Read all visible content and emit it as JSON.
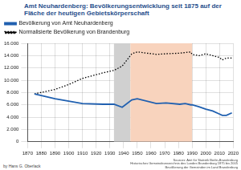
{
  "chart_data": {
    "type": "line",
    "title": "Amt Neuhardenberg: Bevölkerungsentwicklung seit 1875 auf der Fläche der heutigen Gebietskörperschaft",
    "x": [
      1875,
      1890,
      1900,
      1910,
      1925,
      1933,
      1939,
      1946,
      1950,
      1964,
      1971,
      1981,
      1985,
      1989,
      1990,
      1995,
      2000,
      2005,
      2010,
      2012,
      2015,
      2019
    ],
    "series": [
      {
        "name": "Bevölkerung von Amt Neuhardenberg",
        "color": "#2060b0",
        "line_style": "solid",
        "values": [
          7789,
          7000,
          6600,
          6200,
          6100,
          6100,
          5600,
          6800,
          7000,
          6200,
          6300,
          6100,
          6200,
          6000,
          6000,
          5700,
          5300,
          5000,
          4500,
          4300,
          4300,
          4700
        ]
      },
      {
        "name": "Normalisierte Bevölkerung von Brandenburg",
        "color": "#000000",
        "line_style": "dotted",
        "values": [
          7789,
          8500,
          9300,
          10300,
          11200,
          11600,
          12300,
          14300,
          14600,
          14200,
          14300,
          14400,
          14500,
          14600,
          14200,
          14000,
          14300,
          14000,
          13700,
          13300,
          13600,
          13600
        ]
      }
    ],
    "xlim": [
      1870,
      2020
    ],
    "xticks": [
      1870,
      1880,
      1890,
      1900,
      1910,
      1920,
      1930,
      1940,
      1950,
      1960,
      1970,
      1980,
      1990,
      2000,
      2010,
      2020
    ],
    "ylim": [
      0,
      16000
    ],
    "yticks": [
      0,
      {
        "value": 2000,
        "label": "2.000"
      },
      {
        "value": 4000,
        "label": "4.000"
      },
      {
        "value": 6000,
        "label": "6.000"
      },
      {
        "value": 8000,
        "label": "8.000"
      },
      {
        "value": 10000,
        "label": "10.000"
      },
      {
        "value": 12000,
        "label": "12.000"
      },
      {
        "value": 14000,
        "label": "14.000"
      },
      {
        "value": 16000,
        "label": "16.000"
      }
    ],
    "grid": true,
    "legend": "top",
    "spans": [
      {
        "from": 1933,
        "to": 1945,
        "color": "#d0d0d0"
      },
      {
        "from": 1945,
        "to": 1990,
        "color": "#f8d3bd"
      }
    ],
    "annotations": {
      "author": "by Hans G. Oberlack",
      "sources": [
        "Sources: Amt für Statistik Berlin-Brandenburg",
        "Historisches Gemeindeverzeichnis des Landes Brandenburg 1875 bis 2005",
        "Bevölkerung der Gemeinden im Land Brandenburg"
      ]
    }
  }
}
